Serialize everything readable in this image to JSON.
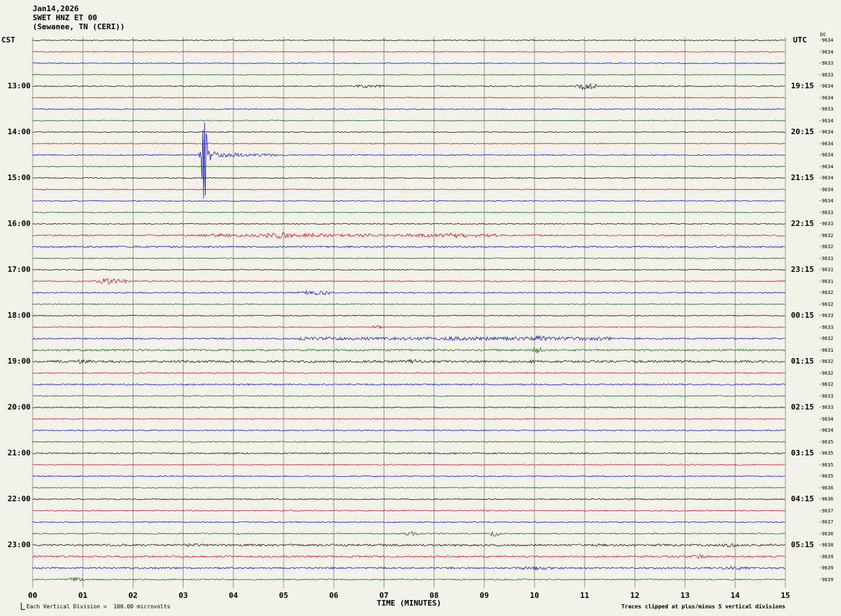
{
  "header": {
    "date": "Jan14,2026",
    "station": "SWET HNZ ET 00",
    "location": "(Sewanee, TN (CERI))"
  },
  "axes": {
    "left_label": "CST",
    "right_label": "UTC",
    "dc_label": "DC",
    "x_label": "TIME (MINUTES)"
  },
  "footer": {
    "scale_note": "Each Vertical Division =  100.00 microvolts",
    "clip_note": "Traces clipped at plus/minus 5 vertical divisions"
  },
  "colors": {
    "black": "#000000",
    "red": "#cc0000",
    "blue": "#0000bb",
    "green": "#005c00",
    "grid": "#808080",
    "bg": "#f2f1ea"
  },
  "chart_data": {
    "type": "line",
    "title": "SWET HNZ ET 00 (Sewanee, TN (CERI)) helicorder Jan14,2026",
    "x_label": "TIME (MINUTES)",
    "x_range": [
      0,
      15
    ],
    "minutes_per_line": 15,
    "clip_divisions": 5,
    "microvolts_per_division": 100.0,
    "x_ticks": [
      "00",
      "01",
      "02",
      "03",
      "04",
      "05",
      "06",
      "07",
      "08",
      "09",
      "10",
      "11",
      "12",
      "13",
      "14",
      "15"
    ],
    "trace_color_cycle": [
      "black",
      "red",
      "blue",
      "green"
    ],
    "left_hour_labels": [
      {
        "row": 4,
        "label": "13:00"
      },
      {
        "row": 8,
        "label": "14:00"
      },
      {
        "row": 12,
        "label": "15:00"
      },
      {
        "row": 16,
        "label": "16:00"
      },
      {
        "row": 20,
        "label": "17:00"
      },
      {
        "row": 24,
        "label": "18:00"
      },
      {
        "row": 28,
        "label": "19:00"
      },
      {
        "row": 32,
        "label": "20:00"
      },
      {
        "row": 36,
        "label": "21:00"
      },
      {
        "row": 40,
        "label": "22:00"
      },
      {
        "row": 44,
        "label": "23:00"
      }
    ],
    "right_hour_labels": [
      {
        "row": 4,
        "label": "19:15"
      },
      {
        "row": 8,
        "label": "20:15"
      },
      {
        "row": 12,
        "label": "21:15"
      },
      {
        "row": 16,
        "label": "22:15"
      },
      {
        "row": 20,
        "label": "23:15"
      },
      {
        "row": 24,
        "label": "00:15"
      },
      {
        "row": 28,
        "label": "01:15"
      },
      {
        "row": 32,
        "label": "02:15"
      },
      {
        "row": 36,
        "label": "03:15"
      },
      {
        "row": 40,
        "label": "04:15"
      },
      {
        "row": 44,
        "label": "05:15"
      }
    ],
    "row_offsets": [
      "-9634",
      "-9634",
      "-9633",
      "-9633",
      "-9634",
      "-9634",
      "-9633",
      "-9634",
      "-9634",
      "-9634",
      "-9634",
      "-9634",
      "-9634",
      "-9634",
      "-9634",
      "-9633",
      "-9633",
      "-9632",
      "-9632",
      "-9631",
      "-9631",
      "-9631",
      "-9632",
      "-9632",
      "-9633",
      "-9633",
      "-9632",
      "-9631",
      "-9632",
      "-9632",
      "-9632",
      "-9633",
      "-9633",
      "-9634",
      "-9634",
      "-9635",
      "-9635",
      "-9635",
      "-9635",
      "-9636",
      "-9636",
      "-9637",
      "-9637",
      "-9636",
      "-9638",
      "-9639",
      "-9639",
      "-9639"
    ],
    "rows": [
      {
        "color": "black",
        "noise": 0.7,
        "events": []
      },
      {
        "color": "red",
        "noise": 0.7,
        "events": []
      },
      {
        "color": "blue",
        "noise": 0.7,
        "events": []
      },
      {
        "color": "green",
        "noise": 0.7,
        "events": []
      },
      {
        "color": "black",
        "noise": 0.8,
        "events": [
          {
            "m": 6.6,
            "w": 0.15,
            "a": 2.5
          },
          {
            "m": 6.9,
            "w": 0.1,
            "a": 2
          },
          {
            "m": 11.0,
            "w": 0.12,
            "a": 5
          },
          {
            "m": 11.15,
            "w": 0.08,
            "a": 4
          }
        ]
      },
      {
        "color": "red",
        "noise": 0.7,
        "events": []
      },
      {
        "color": "blue",
        "noise": 0.7,
        "events": []
      },
      {
        "color": "green",
        "noise": 0.7,
        "events": []
      },
      {
        "color": "black",
        "noise": 0.7,
        "events": []
      },
      {
        "color": "red",
        "noise": 0.7,
        "events": []
      },
      {
        "color": "blue",
        "noise": 0.8,
        "events": [
          {
            "m": 3.42,
            "w": 0.04,
            "a": 66
          },
          {
            "m": 3.55,
            "w": 0.15,
            "a": 8
          },
          {
            "m": 3.9,
            "w": 0.3,
            "a": 3.5
          },
          {
            "m0": 4.2,
            "m1": 4.9,
            "a": 2
          }
        ]
      },
      {
        "color": "green",
        "noise": 0.7,
        "events": []
      },
      {
        "color": "black",
        "noise": 0.7,
        "events": []
      },
      {
        "color": "red",
        "noise": 0.7,
        "events": []
      },
      {
        "color": "blue",
        "noise": 0.7,
        "events": []
      },
      {
        "color": "green",
        "noise": 0.7,
        "events": []
      },
      {
        "color": "black",
        "noise": 0.7,
        "events": []
      },
      {
        "color": "red",
        "noise": 1.0,
        "events": [
          {
            "m0": 3.3,
            "m1": 9.3,
            "a": 2.2
          },
          {
            "m": 4.9,
            "w": 0.3,
            "a": 4.5
          },
          {
            "m": 5.6,
            "w": 0.2,
            "a": 3.5
          },
          {
            "m": 8.4,
            "w": 0.3,
            "a": 3.5
          }
        ]
      },
      {
        "color": "blue",
        "noise": 1.0,
        "events": [
          {
            "m0": 0,
            "m1": 15,
            "a": 1.2
          }
        ]
      },
      {
        "color": "green",
        "noise": 0.8,
        "events": []
      },
      {
        "color": "black",
        "noise": 0.8,
        "events": []
      },
      {
        "color": "red",
        "noise": 0.9,
        "events": [
          {
            "m": 1.55,
            "w": 0.2,
            "a": 5
          },
          {
            "m": 1.8,
            "w": 0.1,
            "a": 4
          }
        ]
      },
      {
        "color": "blue",
        "noise": 0.9,
        "events": [
          {
            "m": 5.6,
            "w": 0.2,
            "a": 4
          },
          {
            "m": 5.85,
            "w": 0.12,
            "a": 3
          }
        ]
      },
      {
        "color": "green",
        "noise": 0.7,
        "events": []
      },
      {
        "color": "black",
        "noise": 0.8,
        "events": []
      },
      {
        "color": "red",
        "noise": 0.8,
        "events": [
          {
            "m": 6.85,
            "w": 0.1,
            "a": 2.5
          }
        ]
      },
      {
        "color": "blue",
        "noise": 1.1,
        "events": [
          {
            "m0": 5.3,
            "m1": 8.2,
            "a": 2.2
          },
          {
            "m0": 8.2,
            "m1": 11.6,
            "a": 2.6
          },
          {
            "m": 10.1,
            "w": 0.15,
            "a": 4
          }
        ]
      },
      {
        "color": "green",
        "noise": 1.0,
        "events": [
          {
            "m0": 0,
            "m1": 15,
            "a": 1.3
          },
          {
            "m": 10.05,
            "w": 0.08,
            "a": 5
          }
        ]
      },
      {
        "color": "black",
        "noise": 1.2,
        "events": [
          {
            "m0": 0,
            "m1": 15,
            "a": 1.6
          },
          {
            "m": 1.0,
            "w": 0.15,
            "a": 3.5
          },
          {
            "m": 7.6,
            "w": 0.2,
            "a": 3
          },
          {
            "m": 10.0,
            "w": 0.15,
            "a": 2.5
          },
          {
            "m": 13.0,
            "w": 0.2,
            "a": 2.2
          }
        ]
      },
      {
        "color": "red",
        "noise": 0.8,
        "events": []
      },
      {
        "color": "blue",
        "noise": 0.9,
        "events": [
          {
            "m0": 0,
            "m1": 15,
            "a": 1.1
          }
        ]
      },
      {
        "color": "green",
        "noise": 0.8,
        "events": []
      },
      {
        "color": "black",
        "noise": 0.9,
        "events": []
      },
      {
        "color": "red",
        "noise": 0.8,
        "events": []
      },
      {
        "color": "blue",
        "noise": 0.8,
        "events": []
      },
      {
        "color": "green",
        "noise": 0.8,
        "events": []
      },
      {
        "color": "black",
        "noise": 0.9,
        "events": [
          {
            "m0": 0,
            "m1": 15,
            "a": 1.1
          }
        ]
      },
      {
        "color": "red",
        "noise": 0.8,
        "events": []
      },
      {
        "color": "blue",
        "noise": 0.8,
        "events": []
      },
      {
        "color": "green",
        "noise": 0.8,
        "events": []
      },
      {
        "color": "black",
        "noise": 0.9,
        "events": []
      },
      {
        "color": "red",
        "noise": 0.8,
        "events": []
      },
      {
        "color": "blue",
        "noise": 0.8,
        "events": []
      },
      {
        "color": "green",
        "noise": 0.9,
        "events": [
          {
            "m": 7.55,
            "w": 0.1,
            "a": 3.5
          },
          {
            "m": 9.2,
            "w": 0.1,
            "a": 4
          }
        ]
      },
      {
        "color": "black",
        "noise": 1.2,
        "events": [
          {
            "m0": 0,
            "m1": 15,
            "a": 1.5
          },
          {
            "m": 3.2,
            "w": 0.2,
            "a": 2.5
          },
          {
            "m": 13.9,
            "w": 0.15,
            "a": 3
          }
        ]
      },
      {
        "color": "red",
        "noise": 1.0,
        "events": [
          {
            "m0": 0,
            "m1": 15,
            "a": 1.2
          },
          {
            "m": 13.3,
            "w": 0.15,
            "a": 3.5
          }
        ]
      },
      {
        "color": "blue",
        "noise": 1.0,
        "events": [
          {
            "m0": 0,
            "m1": 15,
            "a": 1.2
          },
          {
            "m": 10.0,
            "w": 0.3,
            "a": 3
          },
          {
            "m": 14.0,
            "w": 0.3,
            "a": 2.5
          }
        ]
      },
      {
        "color": "green",
        "noise": 0.9,
        "events": [
          {
            "m": 0.85,
            "w": 0.15,
            "a": 3
          }
        ]
      }
    ]
  }
}
